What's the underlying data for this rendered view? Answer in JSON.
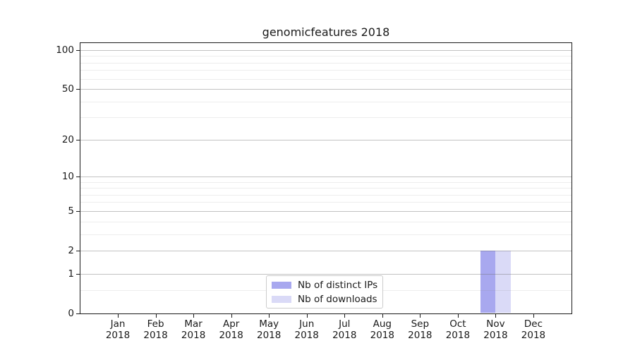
{
  "title": "genomicfeatures 2018",
  "chart_data": {
    "type": "bar",
    "title": "genomicfeatures 2018",
    "x_tick_months": [
      "Jan",
      "Feb",
      "Mar",
      "Apr",
      "May",
      "Jun",
      "Jul",
      "Aug",
      "Sep",
      "Oct",
      "Nov",
      "Dec"
    ],
    "x_tick_year": "2018",
    "series": [
      {
        "name": "Nb of distinct IPs",
        "color": "#a8a8ef",
        "values": [
          0,
          0,
          0,
          0,
          0,
          0,
          0,
          0,
          0,
          0,
          2,
          0
        ]
      },
      {
        "name": "Nb of downloads",
        "color": "#dadaf7",
        "values": [
          0,
          0,
          0,
          0,
          0,
          0,
          0,
          0,
          0,
          0,
          2,
          0
        ]
      }
    ],
    "y_scale": "log1p",
    "y_major_ticks": [
      0,
      1,
      2,
      5,
      10,
      20,
      50,
      100
    ],
    "y_minor_ticks": [
      0.5,
      3,
      4,
      6,
      7,
      8,
      9,
      30,
      40,
      60,
      70,
      80,
      90
    ],
    "ylim": [
      0,
      113
    ],
    "grid": "horizontal major+minor, drawn above bars",
    "legend_position": "lower center inside plot"
  },
  "legend": {
    "items": [
      {
        "label": "Nb of distinct IPs",
        "color": "#a8a8ef"
      },
      {
        "label": "Nb of downloads",
        "color": "#dadaf7"
      }
    ]
  },
  "colors": {
    "background": "#ffffff",
    "spine": "#1a1a1a",
    "grid_major": "#c6c6c6",
    "grid_minor": "#e9e9e9",
    "text": "#1a1a1a",
    "legend_border": "#cccccc"
  }
}
